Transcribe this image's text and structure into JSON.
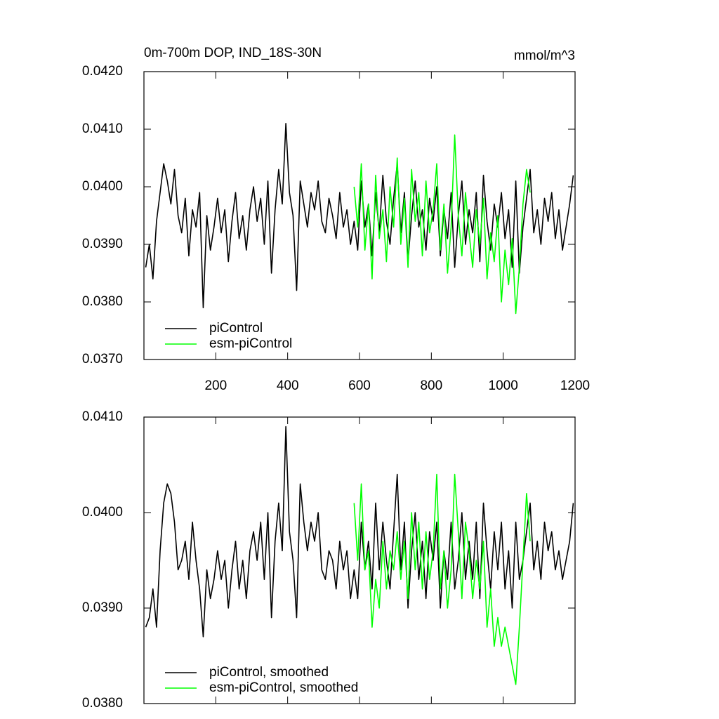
{
  "chart_data": [
    {
      "type": "line",
      "title": "0m-700m DOP, IND_18S-30N",
      "units_label": "mmol/m^3",
      "xlim": [
        0,
        1200
      ],
      "xticks": [
        200,
        400,
        600,
        800,
        1000,
        1200
      ],
      "show_xtick_labels": true,
      "ylim": [
        0.037,
        0.042
      ],
      "yticks": [
        {
          "value": 0.037,
          "label": "0.0370"
        },
        {
          "value": 0.038,
          "label": "0.0380"
        },
        {
          "value": 0.039,
          "label": "0.0390"
        },
        {
          "value": 0.04,
          "label": "0.0400"
        },
        {
          "value": 0.041,
          "label": "0.0410"
        },
        {
          "value": 0.042,
          "label": "0.0420"
        }
      ],
      "grid": false,
      "legend": "lower left",
      "series": [
        {
          "name": "piControl",
          "color": "#000000",
          "x": [
            5,
            15,
            25,
            35,
            45,
            55,
            65,
            75,
            85,
            95,
            105,
            115,
            125,
            135,
            145,
            155,
            165,
            175,
            185,
            195,
            205,
            215,
            225,
            235,
            245,
            255,
            265,
            275,
            285,
            295,
            305,
            315,
            325,
            335,
            345,
            355,
            365,
            375,
            385,
            395,
            405,
            415,
            425,
            435,
            445,
            455,
            465,
            475,
            485,
            495,
            505,
            515,
            525,
            535,
            545,
            555,
            565,
            575,
            585,
            595,
            605,
            615,
            625,
            635,
            645,
            655,
            665,
            675,
            685,
            695,
            705,
            715,
            725,
            735,
            745,
            755,
            765,
            775,
            785,
            795,
            805,
            815,
            825,
            835,
            845,
            855,
            865,
            875,
            885,
            895,
            905,
            915,
            925,
            935,
            945,
            955,
            965,
            975,
            985,
            995,
            1005,
            1015,
            1025,
            1035,
            1045,
            1055,
            1065,
            1075,
            1085,
            1095,
            1105,
            1115,
            1125,
            1135,
            1145,
            1155,
            1165,
            1175,
            1185,
            1195
          ],
          "values": [
            0.0386,
            0.039,
            0.0384,
            0.0394,
            0.0399,
            0.0404,
            0.0401,
            0.0397,
            0.0403,
            0.0395,
            0.0392,
            0.0398,
            0.0388,
            0.0396,
            0.0393,
            0.0399,
            0.0379,
            0.0395,
            0.0389,
            0.0393,
            0.0398,
            0.0392,
            0.0396,
            0.0387,
            0.0394,
            0.0399,
            0.0391,
            0.0395,
            0.0389,
            0.0396,
            0.04,
            0.0394,
            0.0398,
            0.039,
            0.0401,
            0.0385,
            0.0396,
            0.0403,
            0.0397,
            0.0411,
            0.0399,
            0.0395,
            0.0382,
            0.0401,
            0.0397,
            0.0393,
            0.0399,
            0.0396,
            0.0401,
            0.0394,
            0.0392,
            0.0398,
            0.0395,
            0.0391,
            0.0399,
            0.0393,
            0.0396,
            0.039,
            0.0394,
            0.0389,
            0.0401,
            0.0393,
            0.0397,
            0.0388,
            0.0399,
            0.0392,
            0.0402,
            0.0394,
            0.039,
            0.0398,
            0.0404,
            0.0392,
            0.0399,
            0.0387,
            0.0395,
            0.0401,
            0.0393,
            0.0396,
            0.0389,
            0.0398,
            0.0394,
            0.04,
            0.0388,
            0.0396,
            0.0391,
            0.0399,
            0.0386,
            0.0395,
            0.0401,
            0.039,
            0.0396,
            0.0392,
            0.0399,
            0.0387,
            0.0402,
            0.0394,
            0.0389,
            0.0397,
            0.0393,
            0.0399,
            0.0391,
            0.0396,
            0.0386,
            0.0401,
            0.0385,
            0.0393,
            0.0398,
            0.0403,
            0.0392,
            0.0396,
            0.039,
            0.0398,
            0.0394,
            0.0399,
            0.0391,
            0.0396,
            0.0389,
            0.0393,
            0.0397,
            0.0402
          ]
        },
        {
          "name": "esm-piControl",
          "color": "#00ff00",
          "x": [
            585,
            595,
            605,
            615,
            625,
            635,
            645,
            655,
            665,
            675,
            685,
            695,
            705,
            715,
            725,
            735,
            745,
            755,
            765,
            775,
            785,
            795,
            805,
            815,
            825,
            835,
            845,
            855,
            865,
            875,
            885,
            895,
            905,
            915,
            925,
            935,
            945,
            955,
            965,
            975,
            985,
            995,
            1005,
            1015,
            1025,
            1035,
            1045,
            1055,
            1065,
            1075
          ],
          "values": [
            0.04,
            0.0393,
            0.0404,
            0.0389,
            0.0397,
            0.0384,
            0.0402,
            0.0391,
            0.0396,
            0.0387,
            0.04,
            0.0393,
            0.0405,
            0.039,
            0.0398,
            0.0386,
            0.0403,
            0.0394,
            0.0399,
            0.0388,
            0.0401,
            0.0392,
            0.0396,
            0.0404,
            0.0389,
            0.0397,
            0.0385,
            0.0393,
            0.0409,
            0.0395,
            0.0388,
            0.0399,
            0.0392,
            0.0386,
            0.0396,
            0.039,
            0.0398,
            0.0384,
            0.0392,
            0.0387,
            0.0395,
            0.038,
            0.0389,
            0.0383,
            0.0391,
            0.0378,
            0.0386,
            0.0397,
            0.0403,
            0.0399
          ]
        }
      ]
    },
    {
      "type": "line",
      "xlim": [
        0,
        1200
      ],
      "xticks": [
        200,
        400,
        600,
        800,
        1000,
        1200
      ],
      "show_xtick_labels": false,
      "ylim": [
        0.038,
        0.041
      ],
      "yticks": [
        {
          "value": 0.038,
          "label": "0.0380"
        },
        {
          "value": 0.039,
          "label": "0.0390"
        },
        {
          "value": 0.04,
          "label": "0.0400"
        },
        {
          "value": 0.041,
          "label": "0.0410"
        }
      ],
      "grid": false,
      "legend": "lower left",
      "series": [
        {
          "name": "piControl, smoothed",
          "color": "#000000",
          "x": [
            5,
            15,
            25,
            35,
            45,
            55,
            65,
            75,
            85,
            95,
            105,
            115,
            125,
            135,
            145,
            155,
            165,
            175,
            185,
            195,
            205,
            215,
            225,
            235,
            245,
            255,
            265,
            275,
            285,
            295,
            305,
            315,
            325,
            335,
            345,
            355,
            365,
            375,
            385,
            395,
            405,
            415,
            425,
            435,
            445,
            455,
            465,
            475,
            485,
            495,
            505,
            515,
            525,
            535,
            545,
            555,
            565,
            575,
            585,
            595,
            605,
            615,
            625,
            635,
            645,
            655,
            665,
            675,
            685,
            695,
            705,
            715,
            725,
            735,
            745,
            755,
            765,
            775,
            785,
            795,
            805,
            815,
            825,
            835,
            845,
            855,
            865,
            875,
            885,
            895,
            905,
            915,
            925,
            935,
            945,
            955,
            965,
            975,
            985,
            995,
            1005,
            1015,
            1025,
            1035,
            1045,
            1055,
            1065,
            1075,
            1085,
            1095,
            1105,
            1115,
            1125,
            1135,
            1145,
            1155,
            1165,
            1175,
            1185,
            1195
          ],
          "values": [
            0.0388,
            0.0389,
            0.0392,
            0.0388,
            0.0396,
            0.0401,
            0.0403,
            0.0402,
            0.0399,
            0.0394,
            0.0395,
            0.0397,
            0.0393,
            0.0399,
            0.0395,
            0.0392,
            0.0387,
            0.0394,
            0.0391,
            0.0393,
            0.0396,
            0.0393,
            0.0395,
            0.039,
            0.0394,
            0.0397,
            0.0392,
            0.0395,
            0.0391,
            0.0396,
            0.0398,
            0.0395,
            0.0399,
            0.0393,
            0.04,
            0.0389,
            0.0397,
            0.0401,
            0.0396,
            0.0409,
            0.0398,
            0.0395,
            0.0389,
            0.0403,
            0.0399,
            0.0396,
            0.0399,
            0.0397,
            0.04,
            0.0394,
            0.0393,
            0.0396,
            0.0395,
            0.0392,
            0.0397,
            0.0394,
            0.0396,
            0.0391,
            0.0394,
            0.0391,
            0.0399,
            0.0394,
            0.0397,
            0.0392,
            0.0401,
            0.0394,
            0.0399,
            0.0395,
            0.0392,
            0.0398,
            0.0404,
            0.0394,
            0.0399,
            0.039,
            0.0396,
            0.04,
            0.0393,
            0.0397,
            0.0391,
            0.0398,
            0.0395,
            0.0399,
            0.039,
            0.0396,
            0.0393,
            0.0399,
            0.0392,
            0.0395,
            0.04,
            0.0393,
            0.0397,
            0.0393,
            0.0399,
            0.0391,
            0.0401,
            0.0396,
            0.0392,
            0.0398,
            0.0394,
            0.0399,
            0.0392,
            0.0396,
            0.039,
            0.0399,
            0.0393,
            0.0395,
            0.0398,
            0.0401,
            0.0394,
            0.0397,
            0.0393,
            0.0399,
            0.0396,
            0.0398,
            0.0394,
            0.0396,
            0.0393,
            0.0395,
            0.0397,
            0.0401
          ]
        },
        {
          "name": "esm-piControl, smoothed",
          "color": "#00ff00",
          "x": [
            585,
            595,
            605,
            615,
            625,
            635,
            645,
            655,
            665,
            675,
            685,
            695,
            705,
            715,
            725,
            735,
            745,
            755,
            765,
            775,
            785,
            795,
            805,
            815,
            825,
            835,
            845,
            855,
            865,
            875,
            885,
            895,
            905,
            915,
            925,
            935,
            945,
            955,
            965,
            975,
            985,
            995,
            1005,
            1015,
            1025,
            1035,
            1045,
            1055,
            1065,
            1075
          ],
          "values": [
            0.0401,
            0.0395,
            0.0403,
            0.0394,
            0.0396,
            0.0388,
            0.0393,
            0.039,
            0.0397,
            0.0392,
            0.0396,
            0.0394,
            0.0398,
            0.0393,
            0.0397,
            0.0391,
            0.04,
            0.0394,
            0.0399,
            0.0392,
            0.0398,
            0.0393,
            0.0396,
            0.0404,
            0.0392,
            0.0396,
            0.039,
            0.0394,
            0.0404,
            0.0398,
            0.0391,
            0.0399,
            0.0396,
            0.0391,
            0.0395,
            0.0392,
            0.0397,
            0.0388,
            0.0392,
            0.0386,
            0.0389,
            0.0386,
            0.0388,
            0.0386,
            0.0384,
            0.0382,
            0.0388,
            0.0395,
            0.0402,
            0.0397
          ]
        }
      ]
    }
  ]
}
